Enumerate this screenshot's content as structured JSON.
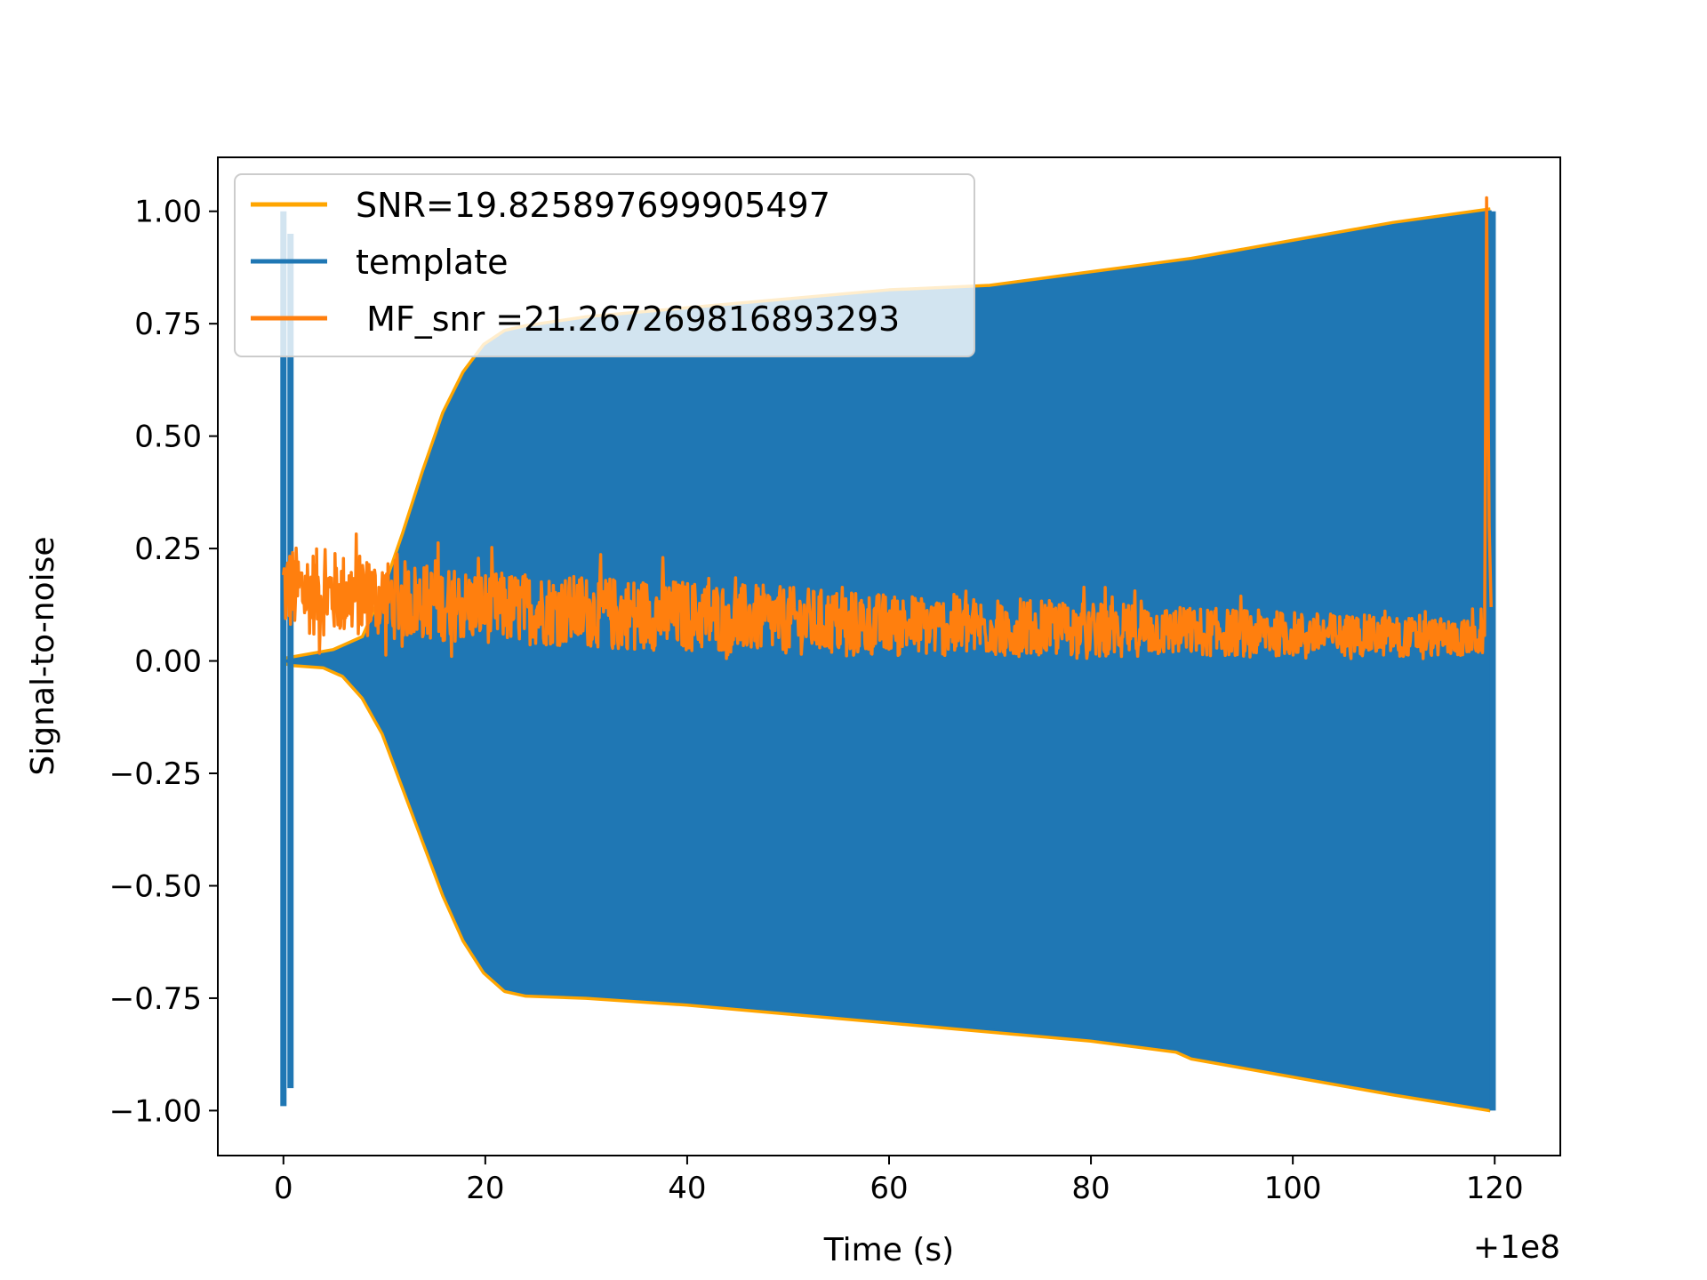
{
  "chart_data": {
    "type": "line",
    "xlabel": "Time (s)",
    "ylabel": "Signal-to-noise",
    "offset_label": "+1e8",
    "xlim": [
      -6.5,
      126.5
    ],
    "ylim": [
      -1.1,
      1.12
    ],
    "xticks": [
      0,
      20,
      40,
      60,
      80,
      100,
      120
    ],
    "xtick_labels": [
      "0",
      "20",
      "40",
      "60",
      "80",
      "100",
      "120"
    ],
    "yticks": [
      1.0,
      0.75,
      0.5,
      0.25,
      0.0,
      -0.25,
      -0.5,
      -0.75,
      -1.0
    ],
    "ytick_labels": [
      "1.00",
      "0.75",
      "0.50",
      "0.25",
      "0.00",
      "−0.25",
      "−0.50",
      "−0.75",
      "−1.00"
    ],
    "grid": false,
    "legend_position": "top-left",
    "series": [
      {
        "name": "SNR=19.825897699905497",
        "color": "#ffa500",
        "kind": "envelope",
        "upper": [
          [
            0,
            0
          ],
          [
            5,
            0.02
          ],
          [
            8,
            0.05
          ],
          [
            10,
            0.15
          ],
          [
            12,
            0.28
          ],
          [
            14,
            0.42
          ],
          [
            16,
            0.55
          ],
          [
            18,
            0.64
          ],
          [
            20,
            0.7
          ],
          [
            22,
            0.73
          ],
          [
            24,
            0.74
          ],
          [
            30,
            0.76
          ],
          [
            40,
            0.78
          ],
          [
            50,
            0.8
          ],
          [
            60,
            0.82
          ],
          [
            70,
            0.83
          ],
          [
            80,
            0.86
          ],
          [
            90,
            0.89
          ],
          [
            100,
            0.93
          ],
          [
            110,
            0.97
          ],
          [
            119.6,
            1.0
          ]
        ],
        "lower": [
          [
            0,
            0
          ],
          [
            1,
            -0.005
          ],
          [
            4,
            -0.01
          ],
          [
            6,
            -0.03
          ],
          [
            8,
            -0.08
          ],
          [
            10,
            -0.16
          ],
          [
            12,
            -0.28
          ],
          [
            14,
            -0.4
          ],
          [
            16,
            -0.52
          ],
          [
            18,
            -0.62
          ],
          [
            20,
            -0.69
          ],
          [
            22,
            -0.73
          ],
          [
            24,
            -0.74
          ],
          [
            30,
            -0.745
          ],
          [
            40,
            -0.76
          ],
          [
            50,
            -0.78
          ],
          [
            60,
            -0.8
          ],
          [
            70,
            -0.82
          ],
          [
            80,
            -0.84
          ],
          [
            88.5,
            -0.865
          ],
          [
            90,
            -0.88
          ],
          [
            100,
            -0.92
          ],
          [
            110,
            -0.96
          ],
          [
            119.6,
            -0.995
          ]
        ]
      },
      {
        "name": "template",
        "color": "#1f77b4",
        "kind": "envelope",
        "upper": [
          [
            0,
            0
          ],
          [
            5,
            0.02
          ],
          [
            8,
            0.05
          ],
          [
            10,
            0.15
          ],
          [
            12,
            0.28
          ],
          [
            14,
            0.42
          ],
          [
            16,
            0.55
          ],
          [
            18,
            0.64
          ],
          [
            20,
            0.7
          ],
          [
            22,
            0.73
          ],
          [
            24,
            0.74
          ],
          [
            30,
            0.76
          ],
          [
            40,
            0.78
          ],
          [
            50,
            0.8
          ],
          [
            60,
            0.82
          ],
          [
            70,
            0.83
          ],
          [
            80,
            0.86
          ],
          [
            90,
            0.89
          ],
          [
            100,
            0.93
          ],
          [
            110,
            0.97
          ],
          [
            119.6,
            1.0
          ]
        ],
        "lower": [
          [
            0,
            0
          ],
          [
            1,
            -0.005
          ],
          [
            4,
            -0.01
          ],
          [
            6,
            -0.03
          ],
          [
            8,
            -0.08
          ],
          [
            10,
            -0.16
          ],
          [
            12,
            -0.28
          ],
          [
            14,
            -0.4
          ],
          [
            16,
            -0.52
          ],
          [
            18,
            -0.62
          ],
          [
            20,
            -0.69
          ],
          [
            22,
            -0.73
          ],
          [
            24,
            -0.74
          ],
          [
            30,
            -0.745
          ],
          [
            40,
            -0.76
          ],
          [
            50,
            -0.78
          ],
          [
            60,
            -0.8
          ],
          [
            70,
            -0.82
          ],
          [
            80,
            -0.84
          ],
          [
            88.5,
            -0.865
          ],
          [
            90,
            -0.88
          ],
          [
            100,
            -0.92
          ],
          [
            110,
            -0.96
          ],
          [
            119.6,
            -0.995
          ]
        ],
        "spikes": [
          [
            0,
            1.0,
            -0.99
          ],
          [
            0.7,
            0.95,
            -0.95
          ],
          [
            119.8,
            1.0,
            -1.0
          ]
        ]
      },
      {
        "name": " MF_snr =21.267269816893293",
        "color": "#ff7f0e",
        "kind": "noise",
        "baseline": [
          [
            0,
            0.16
          ],
          [
            10,
            0.14
          ],
          [
            20,
            0.12
          ],
          [
            40,
            0.1
          ],
          [
            60,
            0.08
          ],
          [
            80,
            0.07
          ],
          [
            100,
            0.06
          ],
          [
            119,
            0.05
          ]
        ],
        "amplitude": [
          [
            0,
            0.1
          ],
          [
            10,
            0.09
          ],
          [
            20,
            0.08
          ],
          [
            40,
            0.08
          ],
          [
            60,
            0.07
          ],
          [
            80,
            0.06
          ],
          [
            100,
            0.05
          ],
          [
            119,
            0.04
          ]
        ],
        "peak": [
          119.2,
          1.03
        ]
      }
    ]
  }
}
